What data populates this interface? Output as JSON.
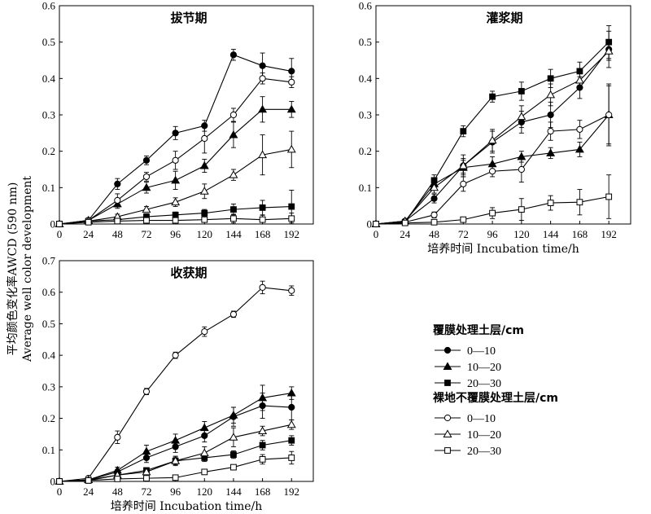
{
  "y_axis_label": "平均颜色变化率AWCD (590 nm)",
  "y_axis_label_en": "Average well color development",
  "legend": {
    "group_film": "覆膜处理土层/cm",
    "group_bare": "裸地不覆膜处理土层/cm",
    "entries": [
      {
        "label": "0—10",
        "marker": "circle",
        "filled": true
      },
      {
        "label": "10—20",
        "marker": "triangle",
        "filled": true
      },
      {
        "label": "20—30",
        "marker": "square",
        "filled": true
      },
      {
        "label": "0—10",
        "marker": "circle",
        "filled": false
      },
      {
        "label": "10—20",
        "marker": "triangle",
        "filled": false
      },
      {
        "label": "20—30",
        "marker": "square",
        "filled": false
      }
    ]
  },
  "chart_data": [
    {
      "type": "line",
      "title": "拔节期",
      "xlabel": "",
      "x": [
        0,
        24,
        48,
        72,
        96,
        120,
        144,
        168,
        192
      ],
      "xticks": [
        "0",
        "24",
        "48",
        "72",
        "96",
        "120",
        "144",
        "168",
        "192"
      ],
      "ylim": [
        0,
        0.6
      ],
      "yticks": [
        "0",
        "0.1",
        "0.2",
        "0.3",
        "0.4",
        "0.5",
        "0.6"
      ],
      "series": [
        {
          "marker": "circle",
          "filled": true,
          "values": [
            0,
            0.01,
            0.11,
            0.175,
            0.25,
            0.27,
            0.465,
            0.435,
            0.42
          ],
          "err": [
            0,
            0.004,
            0.015,
            0.012,
            0.018,
            0.015,
            0.015,
            0.035,
            0.035
          ]
        },
        {
          "marker": "triangle",
          "filled": true,
          "values": [
            0,
            0.01,
            0.055,
            0.1,
            0.12,
            0.16,
            0.245,
            0.315,
            0.315
          ],
          "err": [
            0,
            0.004,
            0.012,
            0.015,
            0.025,
            0.018,
            0.035,
            0.035,
            0.022
          ]
        },
        {
          "marker": "square",
          "filled": true,
          "values": [
            0,
            0.008,
            0.012,
            0.02,
            0.025,
            0.03,
            0.04,
            0.045,
            0.048
          ],
          "err": [
            0,
            0.003,
            0.004,
            0.008,
            0.008,
            0.01,
            0.015,
            0.02,
            0.045
          ]
        },
        {
          "marker": "circle",
          "filled": false,
          "values": [
            0,
            0.01,
            0.065,
            0.13,
            0.175,
            0.235,
            0.3,
            0.4,
            0.39
          ],
          "err": [
            0,
            0.004,
            0.018,
            0.012,
            0.025,
            0.04,
            0.018,
            0.015,
            0.015
          ]
        },
        {
          "marker": "triangle",
          "filled": false,
          "values": [
            0,
            0.008,
            0.02,
            0.04,
            0.06,
            0.09,
            0.135,
            0.19,
            0.205
          ],
          "err": [
            0,
            0.003,
            0.007,
            0.008,
            0.012,
            0.02,
            0.015,
            0.055,
            0.05
          ]
        },
        {
          "marker": "square",
          "filled": false,
          "values": [
            0,
            0.005,
            0.008,
            0.01,
            0.01,
            0.012,
            0.015,
            0.012,
            0.015
          ],
          "err": [
            0,
            0.002,
            0.003,
            0.004,
            0.004,
            0.004,
            0.012,
            0.012,
            0.015
          ]
        }
      ]
    },
    {
      "type": "line",
      "title": "灌浆期",
      "xlabel": "培养时间 Incubation time/h",
      "x": [
        0,
        24,
        48,
        72,
        96,
        120,
        144,
        168,
        192
      ],
      "xticks": [
        "0",
        "24",
        "48",
        "72",
        "96",
        "120",
        "144",
        "168",
        "192"
      ],
      "ylim": [
        0,
        0.6
      ],
      "yticks": [
        "0",
        "0.1",
        "0.2",
        "0.3",
        "0.4",
        "0.5",
        "0.6"
      ],
      "series": [
        {
          "marker": "circle",
          "filled": true,
          "values": [
            0,
            0.008,
            0.07,
            0.16,
            0.225,
            0.28,
            0.3,
            0.375,
            0.48
          ],
          "err": [
            0,
            0.003,
            0.012,
            0.02,
            0.03,
            0.03,
            0.035,
            0.03,
            0.05
          ]
        },
        {
          "marker": "triangle",
          "filled": true,
          "values": [
            0,
            0.008,
            0.11,
            0.155,
            0.165,
            0.185,
            0.195,
            0.205,
            0.3
          ],
          "err": [
            0,
            0.003,
            0.015,
            0.02,
            0.02,
            0.015,
            0.015,
            0.02,
            0.08
          ]
        },
        {
          "marker": "square",
          "filled": true,
          "values": [
            0,
            0.005,
            0.12,
            0.255,
            0.35,
            0.365,
            0.4,
            0.42,
            0.5
          ],
          "err": [
            0,
            0.002,
            0.015,
            0.015,
            0.015,
            0.025,
            0.025,
            0.025,
            0.045
          ]
        },
        {
          "marker": "circle",
          "filled": false,
          "values": [
            0,
            0.005,
            0.025,
            0.11,
            0.145,
            0.15,
            0.255,
            0.26,
            0.3
          ],
          "err": [
            0,
            0.002,
            0.008,
            0.02,
            0.015,
            0.035,
            0.025,
            0.025,
            0.085
          ]
        },
        {
          "marker": "triangle",
          "filled": false,
          "values": [
            0,
            0.008,
            0.1,
            0.16,
            0.23,
            0.295,
            0.355,
            0.395,
            0.475
          ],
          "err": [
            0,
            0.003,
            0.015,
            0.03,
            0.03,
            0.03,
            0.03,
            0.02,
            0.025
          ]
        },
        {
          "marker": "square",
          "filled": false,
          "values": [
            0,
            0.003,
            0.005,
            0.012,
            0.03,
            0.04,
            0.058,
            0.06,
            0.075
          ],
          "err": [
            0,
            0.002,
            0.002,
            0.005,
            0.015,
            0.03,
            0.02,
            0.035,
            0.06
          ]
        }
      ]
    },
    {
      "type": "line",
      "title": "收获期",
      "xlabel": "培养时间 Incubation time/h",
      "x": [
        0,
        24,
        48,
        72,
        96,
        120,
        144,
        168,
        192
      ],
      "xticks": [
        "0",
        "24",
        "48",
        "72",
        "96",
        "120",
        "144",
        "168",
        "192"
      ],
      "ylim": [
        0,
        0.7
      ],
      "yticks": [
        "0",
        "0.1",
        "0.2",
        "0.3",
        "0.4",
        "0.5",
        "0.6",
        "0.7"
      ],
      "series": [
        {
          "marker": "circle",
          "filled": true,
          "values": [
            0,
            0.005,
            0.03,
            0.075,
            0.11,
            0.145,
            0.205,
            0.24,
            0.235
          ],
          "err": [
            0,
            0.003,
            0.008,
            0.015,
            0.018,
            0.02,
            0.03,
            0.04,
            0.04
          ]
        },
        {
          "marker": "triangle",
          "filled": true,
          "values": [
            0,
            0.005,
            0.035,
            0.095,
            0.13,
            0.17,
            0.21,
            0.265,
            0.28
          ],
          "err": [
            0,
            0.003,
            0.01,
            0.02,
            0.02,
            0.02,
            0.025,
            0.04,
            0.02
          ]
        },
        {
          "marker": "square",
          "filled": true,
          "values": [
            0,
            0.003,
            0.02,
            0.035,
            0.065,
            0.075,
            0.085,
            0.115,
            0.13
          ],
          "err": [
            0,
            0.002,
            0.005,
            0.008,
            0.012,
            0.012,
            0.012,
            0.015,
            0.015
          ]
        },
        {
          "marker": "circle",
          "filled": false,
          "values": [
            0,
            0.01,
            0.14,
            0.285,
            0.4,
            0.475,
            0.53,
            0.615,
            0.605
          ],
          "err": [
            0,
            0.004,
            0.02,
            0.01,
            0.01,
            0.015,
            0.01,
            0.02,
            0.015
          ]
        },
        {
          "marker": "triangle",
          "filled": false,
          "values": [
            0,
            0.005,
            0.02,
            0.03,
            0.065,
            0.09,
            0.14,
            0.16,
            0.18
          ],
          "err": [
            0,
            0.003,
            0.005,
            0.008,
            0.015,
            0.02,
            0.03,
            0.015,
            0.015
          ]
        },
        {
          "marker": "square",
          "filled": false,
          "values": [
            0,
            0.003,
            0.008,
            0.01,
            0.012,
            0.03,
            0.045,
            0.07,
            0.075
          ],
          "err": [
            0,
            0.002,
            0.003,
            0.003,
            0.004,
            0.008,
            0.008,
            0.015,
            0.02
          ]
        }
      ]
    }
  ]
}
